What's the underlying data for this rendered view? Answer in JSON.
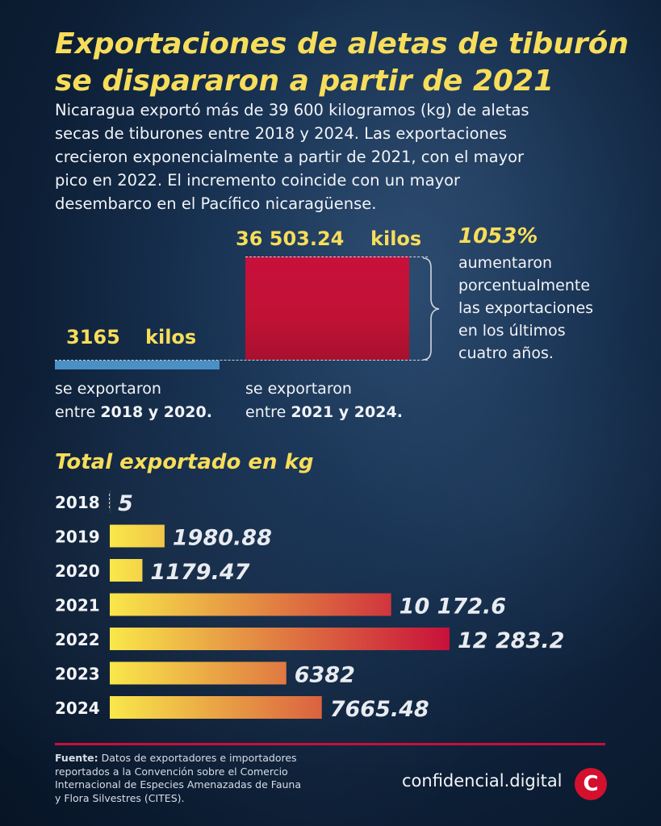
{
  "title": {
    "line1": "Exportaciones de aletas de tiburón",
    "line2": "se dispararon a partir de 2021"
  },
  "intro": {
    "line1": "Nicaragua exportó más de 39 600 kilogramos (kg) de aletas",
    "line2": "secas de tiburones entre 2018 y 2024. Las exportaciones",
    "line3": "crecieron exponencialmente a partir de 2021, con el mayor",
    "line4": "pico en 2022. El incremento coincide con un mayor",
    "line5": "desembarco en el Pacífico nicaragüense."
  },
  "comparison": {
    "small": {
      "value": "3165",
      "unit": "kilos",
      "caption_line1": "se exportaron",
      "caption_pre": "entre ",
      "caption_bold": "2018 y 2020.",
      "color": "#4a90c4"
    },
    "big": {
      "value": "36 503.24",
      "unit": "kilos",
      "caption_line1": "se exportaron",
      "caption_pre": "entre ",
      "caption_bold": "2021 y 2024.",
      "color": "#c8103a"
    },
    "increase": {
      "value": "1053%",
      "line1": "aumentaron",
      "line2": "porcentualmente",
      "line3": "las exportaciones",
      "line4": "en los últimos",
      "line5": "cuatro años."
    }
  },
  "chart_data": {
    "type": "bar",
    "orientation": "horizontal",
    "title": "Total exportado en kg",
    "categories": [
      "2018",
      "2019",
      "2020",
      "2021",
      "2022",
      "2023",
      "2024"
    ],
    "values": [
      5,
      1980.88,
      1179.47,
      10172.6,
      12283.2,
      6382,
      7665.48
    ],
    "value_labels": [
      "5",
      "1980.88",
      "1179.47",
      "10 172.6",
      "12 283.2",
      "6382",
      "7665.48"
    ],
    "xlim": [
      0,
      12283.2
    ],
    "gradient_colors": [
      "#f9e84a",
      "#c8103a"
    ]
  },
  "footer": {
    "source_label": "Fuente:",
    "source_line1": " Datos de exportadores e importadores",
    "source_line2": "reportados a la Convención sobre el Comercio",
    "source_line3": "Internacional de Especies Amenazadas de Fauna",
    "source_line4": "y Flora Silvestres (CITES).",
    "brand": "confidencial.digital",
    "logo_letter": "C"
  }
}
